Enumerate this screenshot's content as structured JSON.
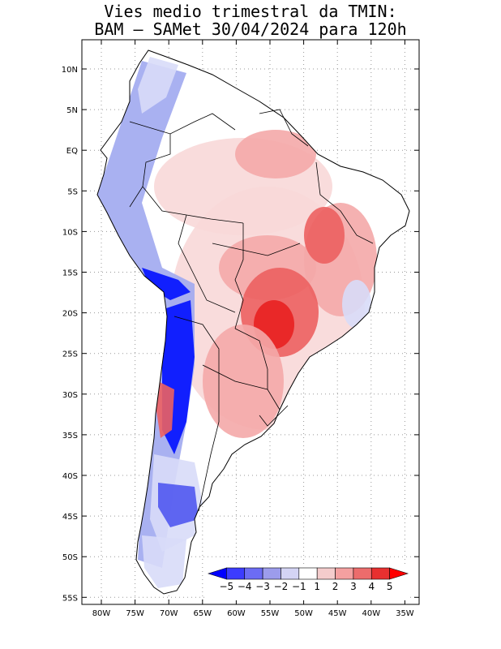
{
  "title_line1": "Vies medio trimestral da TMIN:",
  "title_line2": "BAM – SAMet 30/04/2024  para 120h",
  "y_ticks": [
    "10N",
    "5N",
    "EQ",
    "5S",
    "10S",
    "15S",
    "20S",
    "25S",
    "30S",
    "35S",
    "40S",
    "45S",
    "50S",
    "55S"
  ],
  "x_ticks": [
    "80W",
    "75W",
    "70W",
    "65W",
    "60W",
    "55W",
    "50W",
    "45W",
    "40W",
    "35W"
  ],
  "colorbar": {
    "labels": [
      "−5",
      "−4",
      "−3",
      "−2",
      "−1",
      "1",
      "2",
      "3",
      "4",
      "5"
    ],
    "colors": [
      "#0000ff",
      "#3c3cff",
      "#6c6cf4",
      "#9c9cec",
      "#d4d4f4",
      "#ffffff",
      "#f4cccc",
      "#f4a0a0",
      "#ec6c6c",
      "#e83030",
      "#ff0000"
    ]
  },
  "palette": {
    "land_neutral": "#ffffff",
    "warm_light": "#f8d8d8",
    "warm_mid": "#f4a8a8",
    "warm_strong": "#ec6060",
    "warm_max": "#e82020",
    "cool_light": "#d8dcf8",
    "cool_mid": "#a0a8f0",
    "cool_strong": "#5058f0",
    "cool_max": "#0010ff"
  }
}
